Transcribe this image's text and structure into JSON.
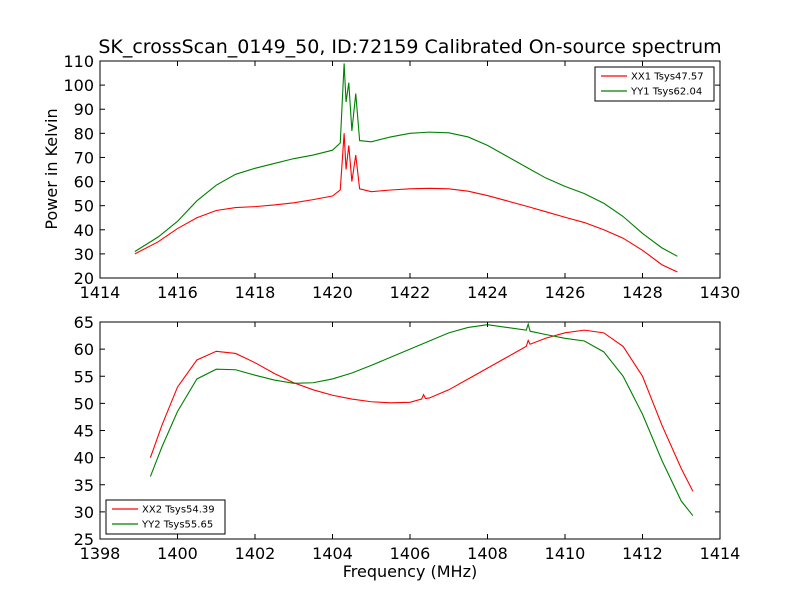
{
  "chart_data": [
    {
      "type": "line",
      "title": "SK_crossScan_0149_50, ID:72159 Calibrated On-source spectrum",
      "xlabel": "",
      "ylabel": "Power in Kelvin",
      "xlim": [
        1414,
        1430
      ],
      "ylim": [
        20,
        110
      ],
      "xticks": [
        1414,
        1416,
        1418,
        1420,
        1422,
        1424,
        1426,
        1428,
        1430
      ],
      "yticks": [
        20,
        30,
        40,
        50,
        60,
        70,
        80,
        90,
        100,
        110
      ],
      "legend_position": "top-right",
      "series": [
        {
          "name": "XX1 Tsys47.57",
          "color": "#ff0000",
          "points": [
            [
              1414.9,
              30.0
            ],
            [
              1415.5,
              35.0
            ],
            [
              1416.0,
              40.5
            ],
            [
              1416.5,
              45.0
            ],
            [
              1417.0,
              48.0
            ],
            [
              1417.5,
              49.2
            ],
            [
              1418.0,
              49.6
            ],
            [
              1418.5,
              50.3
            ],
            [
              1419.0,
              51.2
            ],
            [
              1419.5,
              52.5
            ],
            [
              1420.0,
              54.0
            ],
            [
              1420.2,
              56.5
            ],
            [
              1420.3,
              80.0
            ],
            [
              1420.35,
              65.0
            ],
            [
              1420.42,
              75.0
            ],
            [
              1420.5,
              60.0
            ],
            [
              1420.6,
              71.0
            ],
            [
              1420.7,
              57.0
            ],
            [
              1421.0,
              55.8
            ],
            [
              1421.5,
              56.5
            ],
            [
              1422.0,
              57.0
            ],
            [
              1422.5,
              57.2
            ],
            [
              1423.0,
              57.0
            ],
            [
              1423.5,
              56.0
            ],
            [
              1424.0,
              54.2
            ],
            [
              1424.5,
              52.0
            ],
            [
              1425.0,
              49.8
            ],
            [
              1425.5,
              47.5
            ],
            [
              1426.0,
              45.2
            ],
            [
              1426.5,
              43.0
            ],
            [
              1427.0,
              40.0
            ],
            [
              1427.5,
              36.5
            ],
            [
              1428.0,
              31.5
            ],
            [
              1428.5,
              25.5
            ],
            [
              1428.9,
              22.5
            ]
          ]
        },
        {
          "name": "YY1 Tsys62.04",
          "color": "#008000",
          "points": [
            [
              1414.9,
              31.0
            ],
            [
              1415.5,
              37.0
            ],
            [
              1416.0,
              43.5
            ],
            [
              1416.5,
              52.0
            ],
            [
              1417.0,
              58.5
            ],
            [
              1417.5,
              63.0
            ],
            [
              1418.0,
              65.5
            ],
            [
              1418.5,
              67.5
            ],
            [
              1419.0,
              69.5
            ],
            [
              1419.5,
              71.0
            ],
            [
              1420.0,
              73.0
            ],
            [
              1420.2,
              76.0
            ],
            [
              1420.3,
              109.0
            ],
            [
              1420.35,
              93.0
            ],
            [
              1420.42,
              101.0
            ],
            [
              1420.5,
              81.0
            ],
            [
              1420.6,
              96.5
            ],
            [
              1420.7,
              77.0
            ],
            [
              1421.0,
              76.5
            ],
            [
              1421.5,
              78.5
            ],
            [
              1422.0,
              80.0
            ],
            [
              1422.5,
              80.5
            ],
            [
              1423.0,
              80.2
            ],
            [
              1423.5,
              78.5
            ],
            [
              1424.0,
              75.0
            ],
            [
              1424.5,
              70.5
            ],
            [
              1425.0,
              66.0
            ],
            [
              1425.5,
              61.5
            ],
            [
              1426.0,
              58.0
            ],
            [
              1426.5,
              55.0
            ],
            [
              1427.0,
              51.0
            ],
            [
              1427.5,
              45.5
            ],
            [
              1428.0,
              38.5
            ],
            [
              1428.5,
              32.5
            ],
            [
              1428.9,
              29.0
            ]
          ]
        }
      ]
    },
    {
      "type": "line",
      "title": "",
      "xlabel": "Frequency (MHz)",
      "ylabel": "",
      "xlim": [
        1398,
        1414
      ],
      "ylim": [
        25,
        65
      ],
      "xticks": [
        1398,
        1400,
        1402,
        1404,
        1406,
        1408,
        1410,
        1412,
        1414
      ],
      "yticks": [
        25,
        30,
        35,
        40,
        45,
        50,
        55,
        60,
        65
      ],
      "legend_position": "bottom-left",
      "series": [
        {
          "name": "XX2 Tsys54.39",
          "color": "#ff0000",
          "points": [
            [
              1399.3,
              40.0
            ],
            [
              1399.6,
              46.0
            ],
            [
              1400.0,
              53.0
            ],
            [
              1400.5,
              58.0
            ],
            [
              1401.0,
              59.6
            ],
            [
              1401.5,
              59.2
            ],
            [
              1402.0,
              57.5
            ],
            [
              1402.5,
              55.5
            ],
            [
              1403.0,
              53.8
            ],
            [
              1403.5,
              52.5
            ],
            [
              1404.0,
              51.5
            ],
            [
              1404.5,
              50.8
            ],
            [
              1405.0,
              50.3
            ],
            [
              1405.5,
              50.1
            ],
            [
              1406.0,
              50.2
            ],
            [
              1406.3,
              50.8
            ],
            [
              1406.35,
              51.6
            ],
            [
              1406.4,
              50.9
            ],
            [
              1406.5,
              51.0
            ],
            [
              1407.0,
              52.5
            ],
            [
              1407.5,
              54.5
            ],
            [
              1408.0,
              56.5
            ],
            [
              1408.5,
              58.5
            ],
            [
              1409.0,
              60.5
            ],
            [
              1409.05,
              61.6
            ],
            [
              1409.1,
              60.9
            ],
            [
              1409.5,
              62.0
            ],
            [
              1410.0,
              63.0
            ],
            [
              1410.5,
              63.5
            ],
            [
              1411.0,
              63.0
            ],
            [
              1411.5,
              60.5
            ],
            [
              1412.0,
              55.0
            ],
            [
              1412.5,
              46.0
            ],
            [
              1413.0,
              38.0
            ],
            [
              1413.3,
              33.8
            ]
          ]
        },
        {
          "name": "YY2 Tsys55.65",
          "color": "#008000",
          "points": [
            [
              1399.3,
              36.5
            ],
            [
              1399.6,
              42.0
            ],
            [
              1400.0,
              48.5
            ],
            [
              1400.5,
              54.5
            ],
            [
              1401.0,
              56.3
            ],
            [
              1401.5,
              56.2
            ],
            [
              1402.0,
              55.2
            ],
            [
              1402.5,
              54.3
            ],
            [
              1403.0,
              53.7
            ],
            [
              1403.5,
              53.8
            ],
            [
              1404.0,
              54.5
            ],
            [
              1404.5,
              55.6
            ],
            [
              1405.0,
              57.0
            ],
            [
              1405.5,
              58.5
            ],
            [
              1406.0,
              60.0
            ],
            [
              1406.5,
              61.5
            ],
            [
              1407.0,
              63.0
            ],
            [
              1407.5,
              64.0
            ],
            [
              1408.0,
              64.5
            ],
            [
              1408.5,
              64.0
            ],
            [
              1409.0,
              63.5
            ],
            [
              1409.05,
              64.6
            ],
            [
              1409.1,
              63.3
            ],
            [
              1409.5,
              62.7
            ],
            [
              1410.0,
              62.0
            ],
            [
              1410.5,
              61.5
            ],
            [
              1411.0,
              59.5
            ],
            [
              1411.5,
              55.0
            ],
            [
              1412.0,
              48.0
            ],
            [
              1412.5,
              39.5
            ],
            [
              1413.0,
              32.0
            ],
            [
              1413.3,
              29.3
            ]
          ]
        }
      ]
    }
  ]
}
